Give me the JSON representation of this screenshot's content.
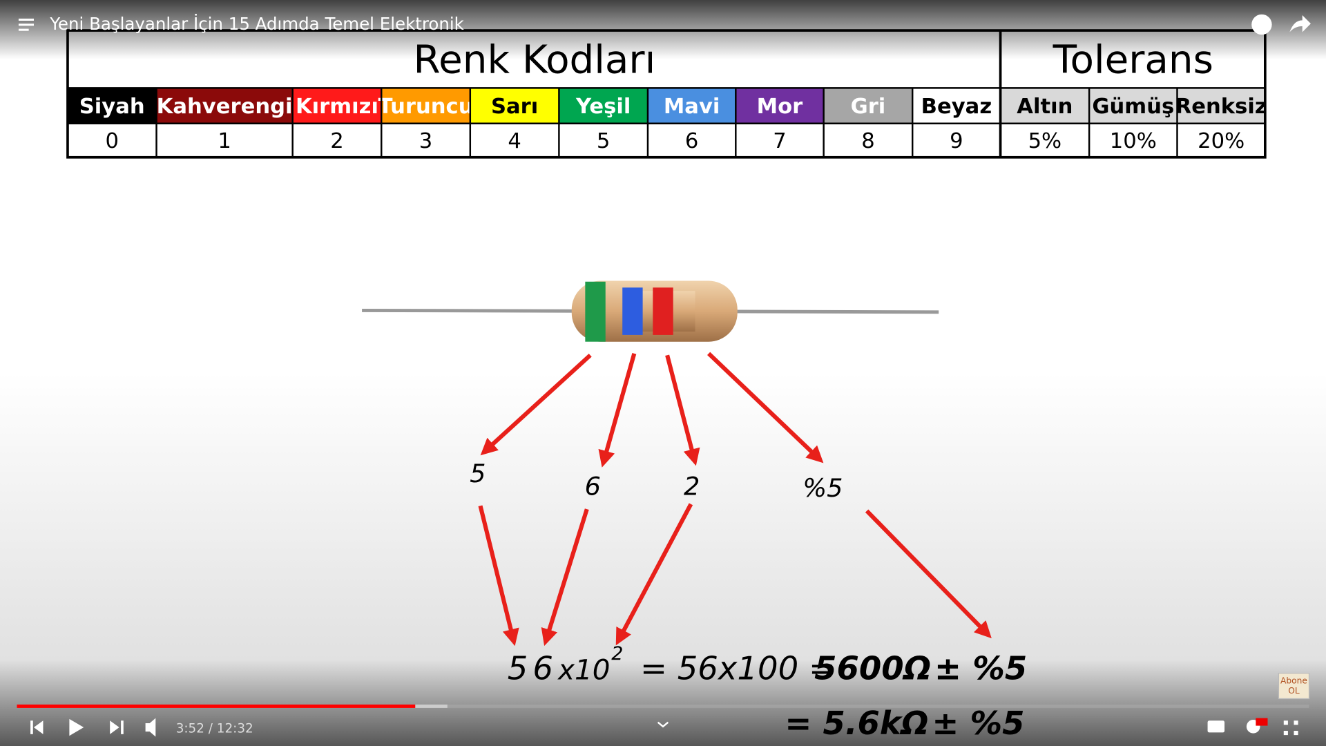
{
  "video": {
    "title": "Yeni Başlayanlar İçin 15 Adımda Temel Elektronik",
    "time": "3:52 / 12:32",
    "subscribe": [
      "Abone",
      "OL"
    ]
  },
  "table": {
    "title": "Renk Kodları",
    "tolerance_title": "Tolerans",
    "colors": [
      {
        "name": "Siyah",
        "value": "0",
        "bg": "#000000",
        "fg": "#ffffff"
      },
      {
        "name": "Kahverengi",
        "value": "1",
        "bg": "#8b0a0a",
        "fg": "#ffffff"
      },
      {
        "name": "Kırmızı",
        "value": "2",
        "bg": "#ff1a1a",
        "fg": "#ffffff"
      },
      {
        "name": "Turuncu",
        "value": "3",
        "bg": "#ff9a00",
        "fg": "#ffffff"
      },
      {
        "name": "Sarı",
        "value": "4",
        "bg": "#ffff00",
        "fg": "#000000"
      },
      {
        "name": "Yeşil",
        "value": "5",
        "bg": "#00a650",
        "fg": "#ffffff"
      },
      {
        "name": "Mavi",
        "value": "6",
        "bg": "#4a8fe0",
        "fg": "#ffffff"
      },
      {
        "name": "Mor",
        "value": "7",
        "bg": "#7030a0",
        "fg": "#ffffff"
      },
      {
        "name": "Gri",
        "value": "8",
        "bg": "#a6a6a6",
        "fg": "#ffffff"
      },
      {
        "name": "Beyaz",
        "value": "9",
        "bg": "#ffffff",
        "fg": "#000000"
      }
    ],
    "tolerances": [
      {
        "name": "Altın",
        "value": "5%"
      },
      {
        "name": "Gümüş",
        "value": "10%"
      },
      {
        "name": "Renksiz",
        "value": "20%"
      }
    ]
  },
  "diagram": {
    "band_labels": [
      "5",
      "6",
      "2",
      "%5"
    ],
    "line1": {
      "d1": "5",
      "d2": "6",
      "mult": "x10",
      "exp": "2",
      "mid": "= 56x100 =",
      "result": "5600Ω",
      "tol": "± %5"
    },
    "line2": {
      "result": "= 5.6kΩ",
      "tol": "± %5"
    }
  }
}
